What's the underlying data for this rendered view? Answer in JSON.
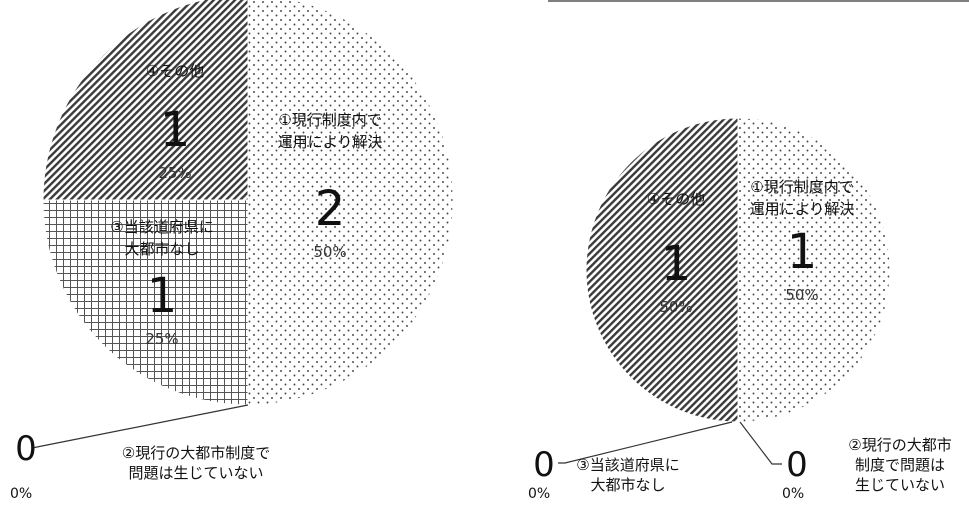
{
  "chart_data": [
    {
      "type": "pie",
      "slices": [
        {
          "label": [
            "①現行制度内で",
            "運用により解決"
          ],
          "value": 2,
          "percent": "50%",
          "pattern": "dots"
        },
        {
          "label": [
            "②現行の大都市制度で",
            "問題は生じていない"
          ],
          "value": 0,
          "percent": "0%",
          "pattern": "none"
        },
        {
          "label": [
            "③当該道府県に",
            "大都市なし"
          ],
          "value": 1,
          "percent": "25%",
          "pattern": "grid"
        },
        {
          "label": [
            "④その他"
          ],
          "value": 1,
          "percent": "25%",
          "pattern": "hatch"
        }
      ]
    },
    {
      "type": "pie",
      "slices": [
        {
          "label": [
            "①現行制度内で",
            "運用により解決"
          ],
          "value": 1,
          "percent": "50%",
          "pattern": "dots"
        },
        {
          "label": [
            "②現行の大都市",
            "制度で問題は",
            "生じていない"
          ],
          "value": 0,
          "percent": "0%",
          "pattern": "none"
        },
        {
          "label": [
            "③当該道府県に",
            "大都市なし"
          ],
          "value": 0,
          "percent": "0%",
          "pattern": "grid"
        },
        {
          "label": [
            "④その他"
          ],
          "value": 1,
          "percent": "50%",
          "pattern": "hatch"
        }
      ]
    }
  ]
}
